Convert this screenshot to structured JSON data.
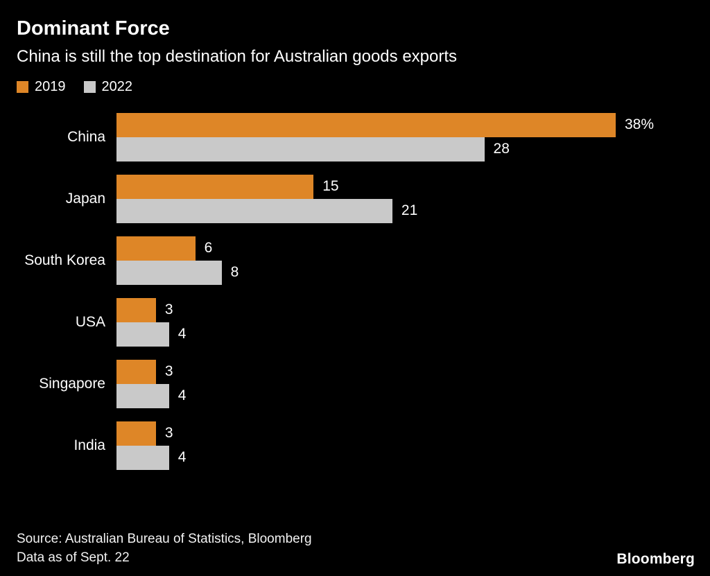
{
  "header": {
    "title": "Dominant Force",
    "subtitle": "China is still the top destination for Australian goods exports"
  },
  "footer": {
    "source_line1": "Source: Australian Bureau of Statistics, Bloomberg",
    "source_line2": "Data as of Sept. 22",
    "logo": "Bloomberg"
  },
  "colors": {
    "background": "#000000",
    "text": "#FFFFFF",
    "series_2019": "#DE8627",
    "series_2022": "#C9C9C9"
  },
  "chart_data": {
    "type": "bar",
    "orientation": "horizontal",
    "title": "Dominant Force",
    "subtitle": "China is still the top destination for Australian goods exports",
    "categories": [
      "China",
      "Japan",
      "South Korea",
      "USA",
      "Singapore",
      "India"
    ],
    "series": [
      {
        "name": "2019",
        "color": "#DE8627",
        "values": [
          38,
          15,
          6,
          3,
          3,
          3
        ],
        "labels": [
          "38%",
          "15",
          "6",
          "3",
          "3",
          "3"
        ]
      },
      {
        "name": "2022",
        "color": "#C9C9C9",
        "values": [
          28,
          21,
          8,
          4,
          4,
          4
        ],
        "labels": [
          "28",
          "21",
          "8",
          "4",
          "4",
          "4"
        ]
      }
    ],
    "xlim": [
      0,
      38
    ],
    "ylabel": "",
    "xlabel": "",
    "grid": false,
    "legend_position": "top-left",
    "value_labels": "end-of-bar"
  }
}
